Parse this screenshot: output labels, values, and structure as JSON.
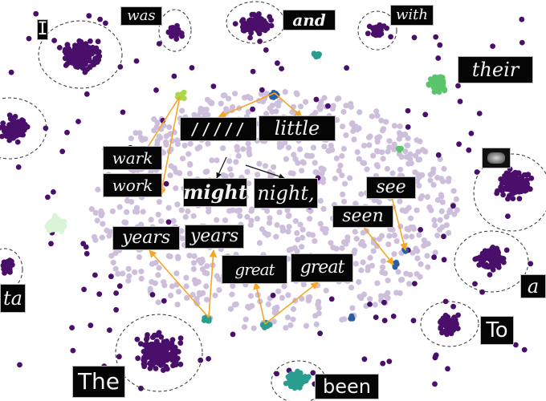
{
  "colors": {
    "background": "#ffffff",
    "common_words": "#4a0f6b",
    "rare_words": "#cdbfdc",
    "arrow": "#f5a623",
    "dark_arrow": "#111111",
    "cluster_teal": "#2a9d8f",
    "cluster_green": "#5ac46a",
    "cluster_blue": "#2c5fa0",
    "cluster_mint": "#d8f5d8",
    "cluster_lime": "#a9d84a"
  },
  "word_images": {
    "I": "I",
    "was": "was",
    "and": "and",
    "with": "with",
    "their": "their",
    "hatched": "/////",
    "little": "little",
    "wark": "wark",
    "work": "work",
    "might": "might",
    "night": "night,",
    "see": "see",
    "seen": "seen",
    "years_1": "years",
    "years_2": "years",
    "great_1": "great",
    "great_2": "great",
    "a": "a",
    "ta": "ta",
    "To": "To",
    "The": "The",
    "been": "been"
  }
}
